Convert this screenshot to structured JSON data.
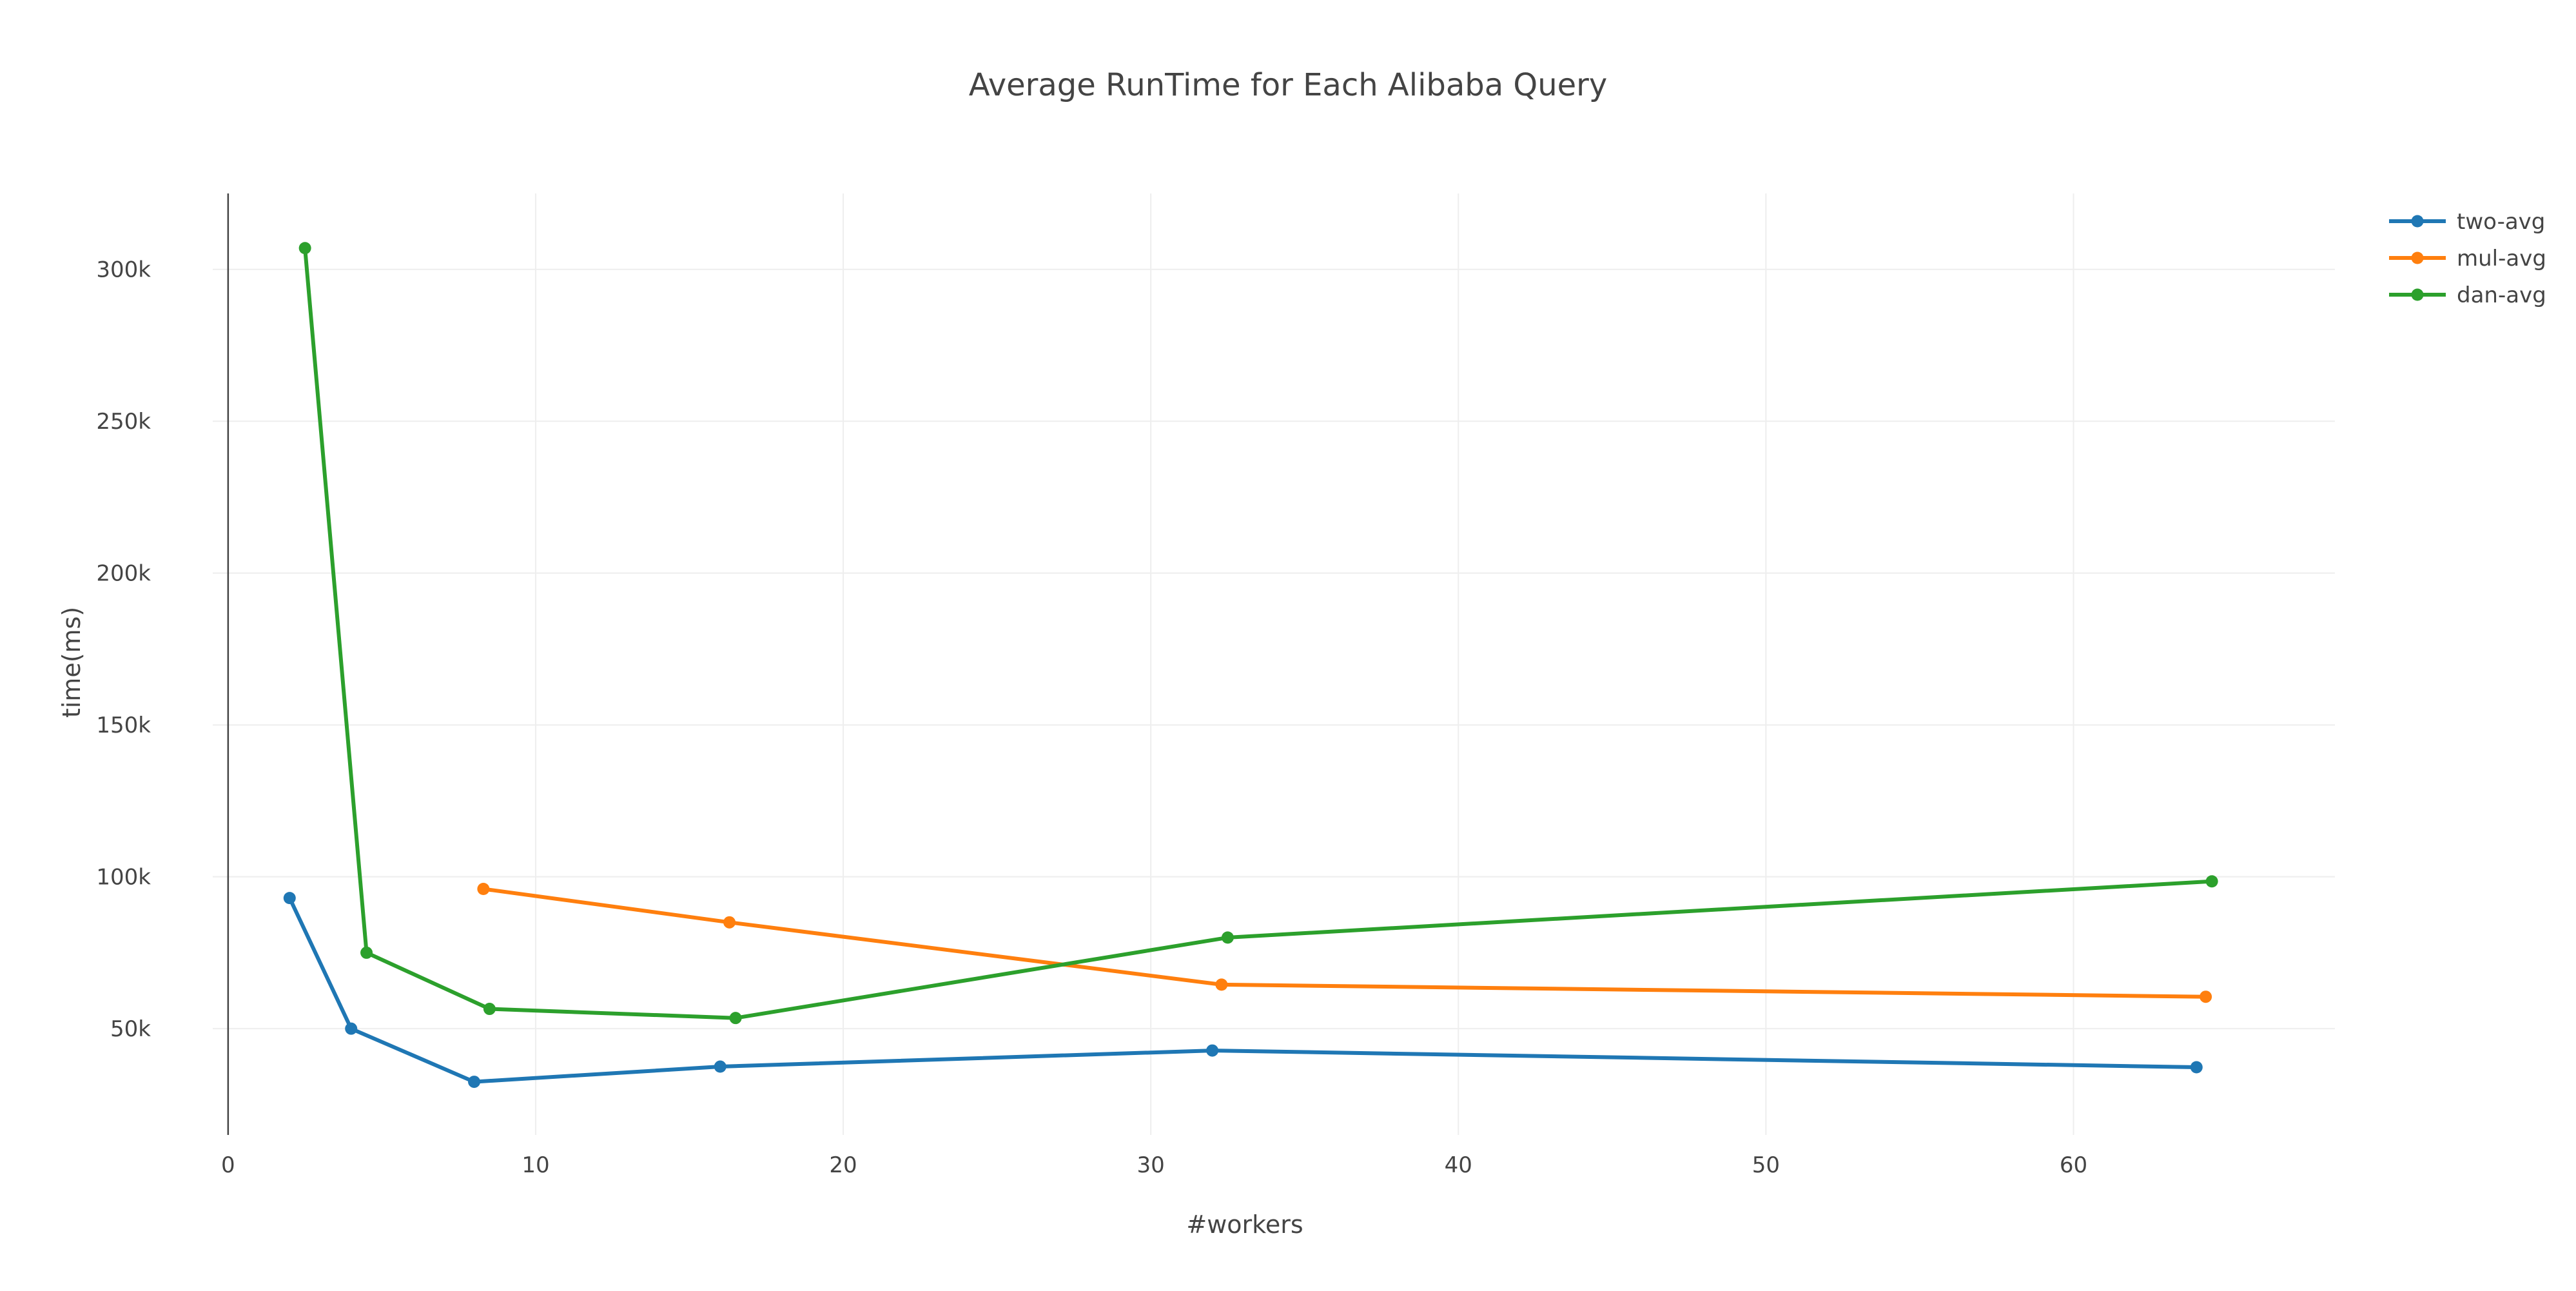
{
  "chart_data": {
    "type": "line",
    "title": "Average RunTime for Each Alibaba Query",
    "xlabel": "#workers",
    "ylabel": "time(ms)",
    "xlim": [
      -0.5,
      68.5
    ],
    "ylim": [
      15000,
      325000
    ],
    "x_ticks": [
      0,
      10,
      20,
      30,
      40,
      50,
      60
    ],
    "x_tick_labels": [
      "0",
      "10",
      "20",
      "30",
      "40",
      "50",
      "60"
    ],
    "y_ticks": [
      50000,
      100000,
      150000,
      200000,
      250000,
      300000
    ],
    "y_tick_labels": [
      "50k",
      "100k",
      "150k",
      "200k",
      "250k",
      "300k"
    ],
    "grid": true,
    "legend_position": "top-right",
    "series": [
      {
        "name": "two-avg",
        "color": "#1f77b4",
        "x": [
          2,
          4,
          8,
          16,
          32,
          64
        ],
        "y": [
          93000,
          50000,
          32500,
          37500,
          42800,
          37300
        ]
      },
      {
        "name": "mul-avg",
        "color": "#ff7f0e",
        "x": [
          8.3,
          16.3,
          32.3,
          64.3
        ],
        "y": [
          96000,
          85000,
          64500,
          60500
        ]
      },
      {
        "name": "dan-avg",
        "color": "#2ca02c",
        "x": [
          2.5,
          4.5,
          8.5,
          16.5,
          32.5,
          64.5
        ],
        "y": [
          307000,
          75000,
          56500,
          53500,
          80000,
          98500
        ]
      }
    ]
  }
}
